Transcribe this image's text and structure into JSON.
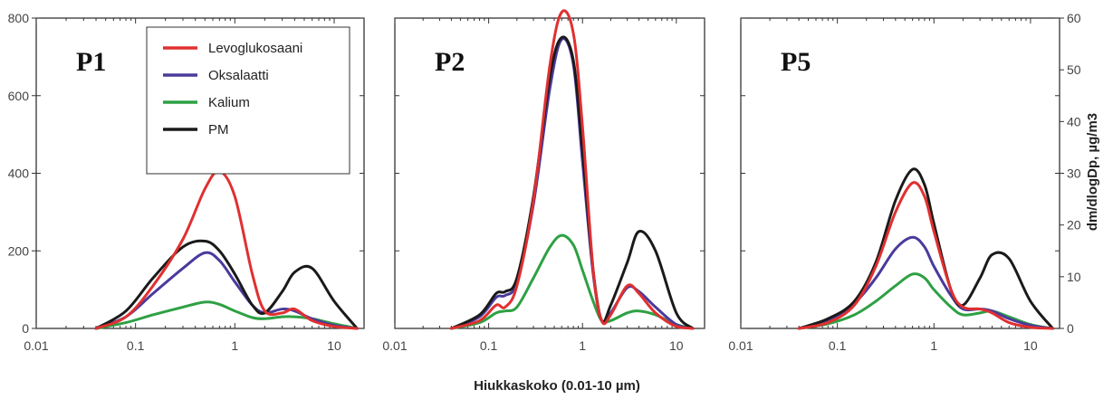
{
  "chart_data": {
    "type": "line",
    "xlabel": "Hiukkaskoko (0.01-10 µm)",
    "ylabel_right": "dm/dlogDp, µg/m3",
    "x_scale": "log",
    "xlim": [
      0.01,
      20
    ],
    "x_ticks": [
      0.01,
      0.1,
      1,
      10
    ],
    "x_tick_labels": [
      "0.01",
      "0.1",
      "1",
      "10"
    ],
    "ylim_left": [
      0,
      800
    ],
    "y_ticks_left": [
      0,
      200,
      400,
      600,
      800
    ],
    "y_tick_labels_left": [
      "0",
      "200",
      "400",
      "600",
      "800"
    ],
    "ylim_right": [
      0,
      60
    ],
    "y_ticks_right": [
      0,
      10,
      20,
      30,
      40,
      50,
      60
    ],
    "y_tick_labels_right": [
      "0",
      "10",
      "20",
      "30",
      "40",
      "50",
      "60"
    ],
    "legend": {
      "placement": "top-left of first panel",
      "entries": [
        "Levoglukosaani",
        "Oksalaatti",
        "Kalium",
        "PM"
      ]
    },
    "colors": {
      "Levoglukosaani": "#e03030",
      "Oksalaatti": "#4b3a9c",
      "Kalium": "#2ea043",
      "PM": "#1a1a1a"
    },
    "panels": [
      {
        "label": "P1",
        "series": [
          {
            "name": "Levoglukosaani",
            "x": [
              0.04,
              0.08,
              0.15,
              0.3,
              0.5,
              0.7,
              1.0,
              1.5,
              2.0,
              3.0,
              4.0,
              6.0,
              10,
              17
            ],
            "y": [
              0,
              30,
              110,
              230,
              360,
              405,
              340,
              140,
              45,
              40,
              50,
              20,
              5,
              0
            ]
          },
          {
            "name": "Oksalaatti",
            "x": [
              0.04,
              0.08,
              0.15,
              0.3,
              0.5,
              0.7,
              1.0,
              1.5,
              2.0,
              3.0,
              4.0,
              6.0,
              10,
              17
            ],
            "y": [
              0,
              30,
              90,
              155,
              195,
              175,
              120,
              60,
              40,
              50,
              45,
              25,
              8,
              0
            ]
          },
          {
            "name": "Kalium",
            "x": [
              0.04,
              0.08,
              0.15,
              0.3,
              0.5,
              0.7,
              1.0,
              1.5,
              2.0,
              3.0,
              4.0,
              6.0,
              10,
              17
            ],
            "y": [
              0,
              15,
              35,
              55,
              68,
              62,
              45,
              28,
              25,
              30,
              30,
              25,
              12,
              0
            ]
          },
          {
            "name": "PM",
            "x": [
              0.04,
              0.08,
              0.15,
              0.3,
              0.5,
              0.7,
              1.0,
              1.5,
              2.0,
              3.0,
              4.0,
              6.0,
              10,
              17
            ],
            "y": [
              0,
              45,
              130,
              210,
              225,
              200,
              140,
              60,
              40,
              95,
              145,
              155,
              70,
              0
            ]
          }
        ]
      },
      {
        "label": "P2",
        "series": [
          {
            "name": "Levoglukosaani",
            "x": [
              0.04,
              0.08,
              0.12,
              0.15,
              0.2,
              0.3,
              0.45,
              0.6,
              0.8,
              1.0,
              1.3,
              1.6,
              2.0,
              3.0,
              4.0,
              6.0,
              10,
              15
            ],
            "y": [
              0,
              20,
              60,
              55,
              110,
              330,
              680,
              815,
              760,
              520,
              150,
              20,
              35,
              110,
              90,
              40,
              5,
              0
            ]
          },
          {
            "name": "Oksalaatti",
            "x": [
              0.04,
              0.08,
              0.12,
              0.15,
              0.2,
              0.3,
              0.45,
              0.6,
              0.8,
              1.0,
              1.3,
              1.6,
              2.0,
              3.0,
              4.0,
              6.0,
              10,
              15
            ],
            "y": [
              0,
              30,
              80,
              85,
              120,
              320,
              620,
              745,
              680,
              430,
              140,
              20,
              40,
              105,
              95,
              55,
              10,
              0
            ]
          },
          {
            "name": "Kalium",
            "x": [
              0.04,
              0.08,
              0.12,
              0.15,
              0.2,
              0.3,
              0.45,
              0.6,
              0.8,
              1.0,
              1.3,
              1.6,
              2.0,
              3.0,
              4.0,
              6.0,
              10,
              15
            ],
            "y": [
              0,
              15,
              40,
              45,
              55,
              130,
              210,
              240,
              215,
              150,
              70,
              20,
              20,
              40,
              45,
              35,
              10,
              0
            ]
          },
          {
            "name": "PM",
            "x": [
              0.04,
              0.08,
              0.12,
              0.15,
              0.2,
              0.3,
              0.45,
              0.6,
              0.8,
              1.0,
              1.3,
              1.6,
              2.0,
              3.0,
              4.0,
              6.0,
              10,
              15
            ],
            "y": [
              0,
              35,
              90,
              95,
              130,
              340,
              650,
              750,
              690,
              460,
              150,
              20,
              60,
              170,
              250,
              200,
              40,
              0
            ]
          }
        ]
      },
      {
        "label": "P5",
        "series": [
          {
            "name": "Levoglukosaani",
            "x": [
              0.04,
              0.08,
              0.15,
              0.25,
              0.4,
              0.6,
              0.8,
              1.0,
              1.5,
              2.0,
              3.0,
              4.0,
              6.0,
              10,
              17
            ],
            "y": [
              0,
              15,
              60,
              160,
              300,
              375,
              340,
              250,
              100,
              55,
              50,
              40,
              15,
              3,
              0
            ]
          },
          {
            "name": "Oksalaatti",
            "x": [
              0.04,
              0.08,
              0.15,
              0.25,
              0.4,
              0.6,
              0.8,
              1.0,
              1.5,
              2.0,
              3.0,
              4.0,
              6.0,
              10,
              17
            ],
            "y": [
              0,
              20,
              65,
              130,
              205,
              235,
              210,
              160,
              85,
              50,
              50,
              45,
              25,
              8,
              0
            ]
          },
          {
            "name": "Kalium",
            "x": [
              0.04,
              0.08,
              0.15,
              0.25,
              0.4,
              0.6,
              0.8,
              1.0,
              1.5,
              2.0,
              3.0,
              4.0,
              6.0,
              10,
              17
            ],
            "y": [
              0,
              12,
              35,
              70,
              110,
              140,
              130,
              100,
              55,
              35,
              40,
              45,
              30,
              10,
              0
            ]
          },
          {
            "name": "PM",
            "x": [
              0.04,
              0.08,
              0.15,
              0.25,
              0.4,
              0.6,
              0.8,
              1.0,
              1.5,
              2.0,
              3.0,
              4.0,
              6.0,
              10,
              17
            ],
            "y": [
              0,
              25,
              70,
              170,
              330,
              410,
              370,
              270,
              100,
              60,
              130,
              190,
              180,
              70,
              0
            ]
          }
        ]
      }
    ]
  }
}
